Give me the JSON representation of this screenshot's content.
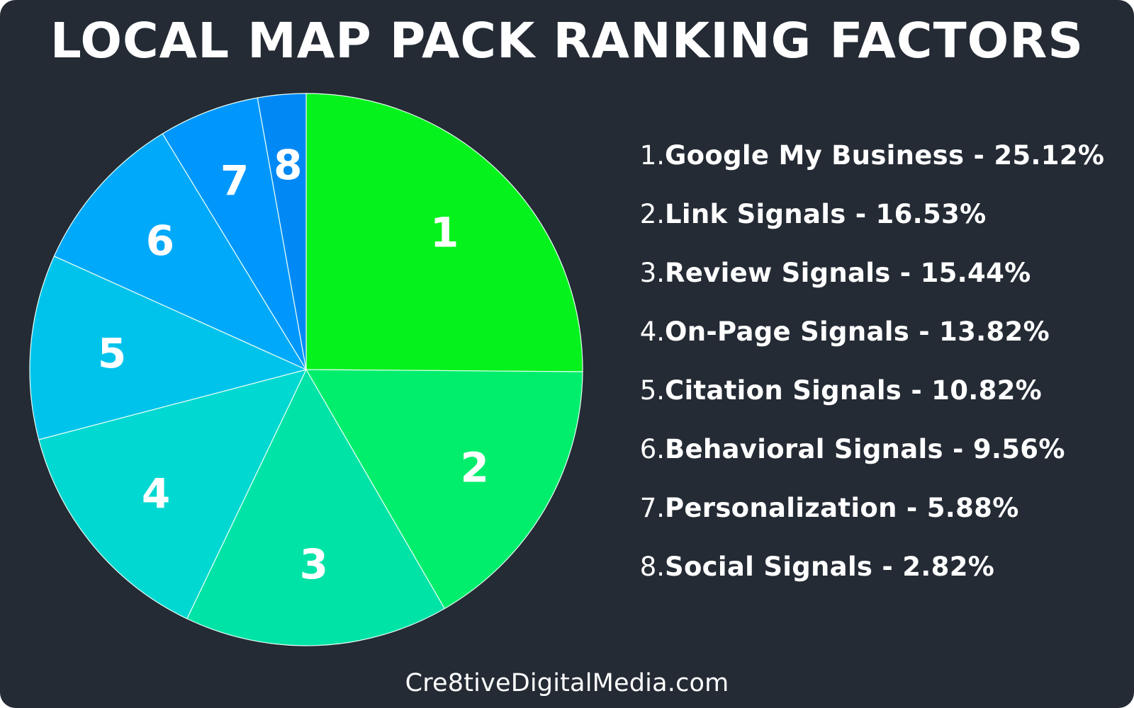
{
  "title": "LOCAL MAP PACK RANKING FACTORS",
  "footer": "Cre8tiveDigitalMedia.com",
  "colors": {
    "background": "#242b35",
    "text": "#ffffff",
    "slices": [
      "#05f21c",
      "#00ee6c",
      "#00e3a6",
      "#00d8d1",
      "#00c3ec",
      "#00a9f9",
      "#0097fd",
      "#0089f5"
    ]
  },
  "chart_data": {
    "type": "pie",
    "title": "LOCAL MAP PACK RANKING FACTORS",
    "labels": [
      "Google My Business",
      "Link Signals",
      "Review Signals",
      "On-Page Signals",
      "Citation Signals",
      "Behavioral Signals",
      "Personalization",
      "Social Signals"
    ],
    "slice_labels": [
      "1",
      "2",
      "3",
      "4",
      "5",
      "6",
      "7",
      "8"
    ],
    "values": [
      25.12,
      16.53,
      15.44,
      13.82,
      10.82,
      9.56,
      5.88,
      2.82
    ],
    "start_position": "12 o'clock",
    "direction": "clockwise",
    "legend_position": "right"
  },
  "legend": [
    {
      "num": "1.",
      "text": "Google My Business - 25.12%"
    },
    {
      "num": "2.",
      "text": "Link Signals - 16.53%"
    },
    {
      "num": "3.",
      "text": "Review Signals - 15.44%"
    },
    {
      "num": "4.",
      "text": "On-Page Signals - 13.82%"
    },
    {
      "num": "5.",
      "text": "Citation Signals - 10.82%"
    },
    {
      "num": "6.",
      "text": "Behavioral Signals - 9.56%"
    },
    {
      "num": "7.",
      "text": "Personalization - 5.88%"
    },
    {
      "num": "8.",
      "text": "Social Signals - 2.82%"
    }
  ]
}
